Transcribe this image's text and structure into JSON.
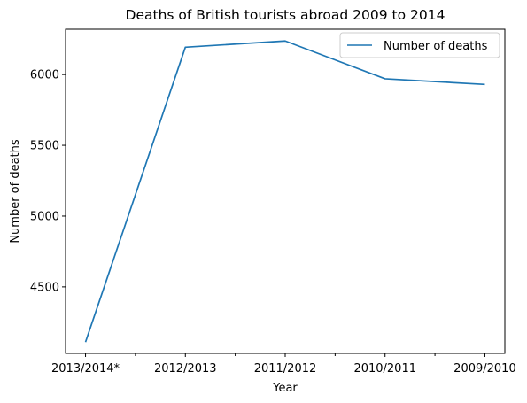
{
  "chart_data": {
    "type": "line",
    "title": "Deaths of British tourists abroad 2009 to 2014",
    "xlabel": "Year",
    "ylabel": "Number of deaths",
    "categories": [
      "2013/2014*",
      "2012/2013",
      "2011/2012",
      "2010/2011",
      "2009/2010"
    ],
    "series": [
      {
        "name": "Number of deaths",
        "values": [
          4110,
          6193,
          6237,
          5970,
          5930
        ],
        "color": "#1f77b4"
      }
    ],
    "ylim": [
      4030,
      6320
    ],
    "yticks": [
      4500,
      5000,
      5500,
      6000
    ],
    "grid": false,
    "legend": "top-right"
  }
}
